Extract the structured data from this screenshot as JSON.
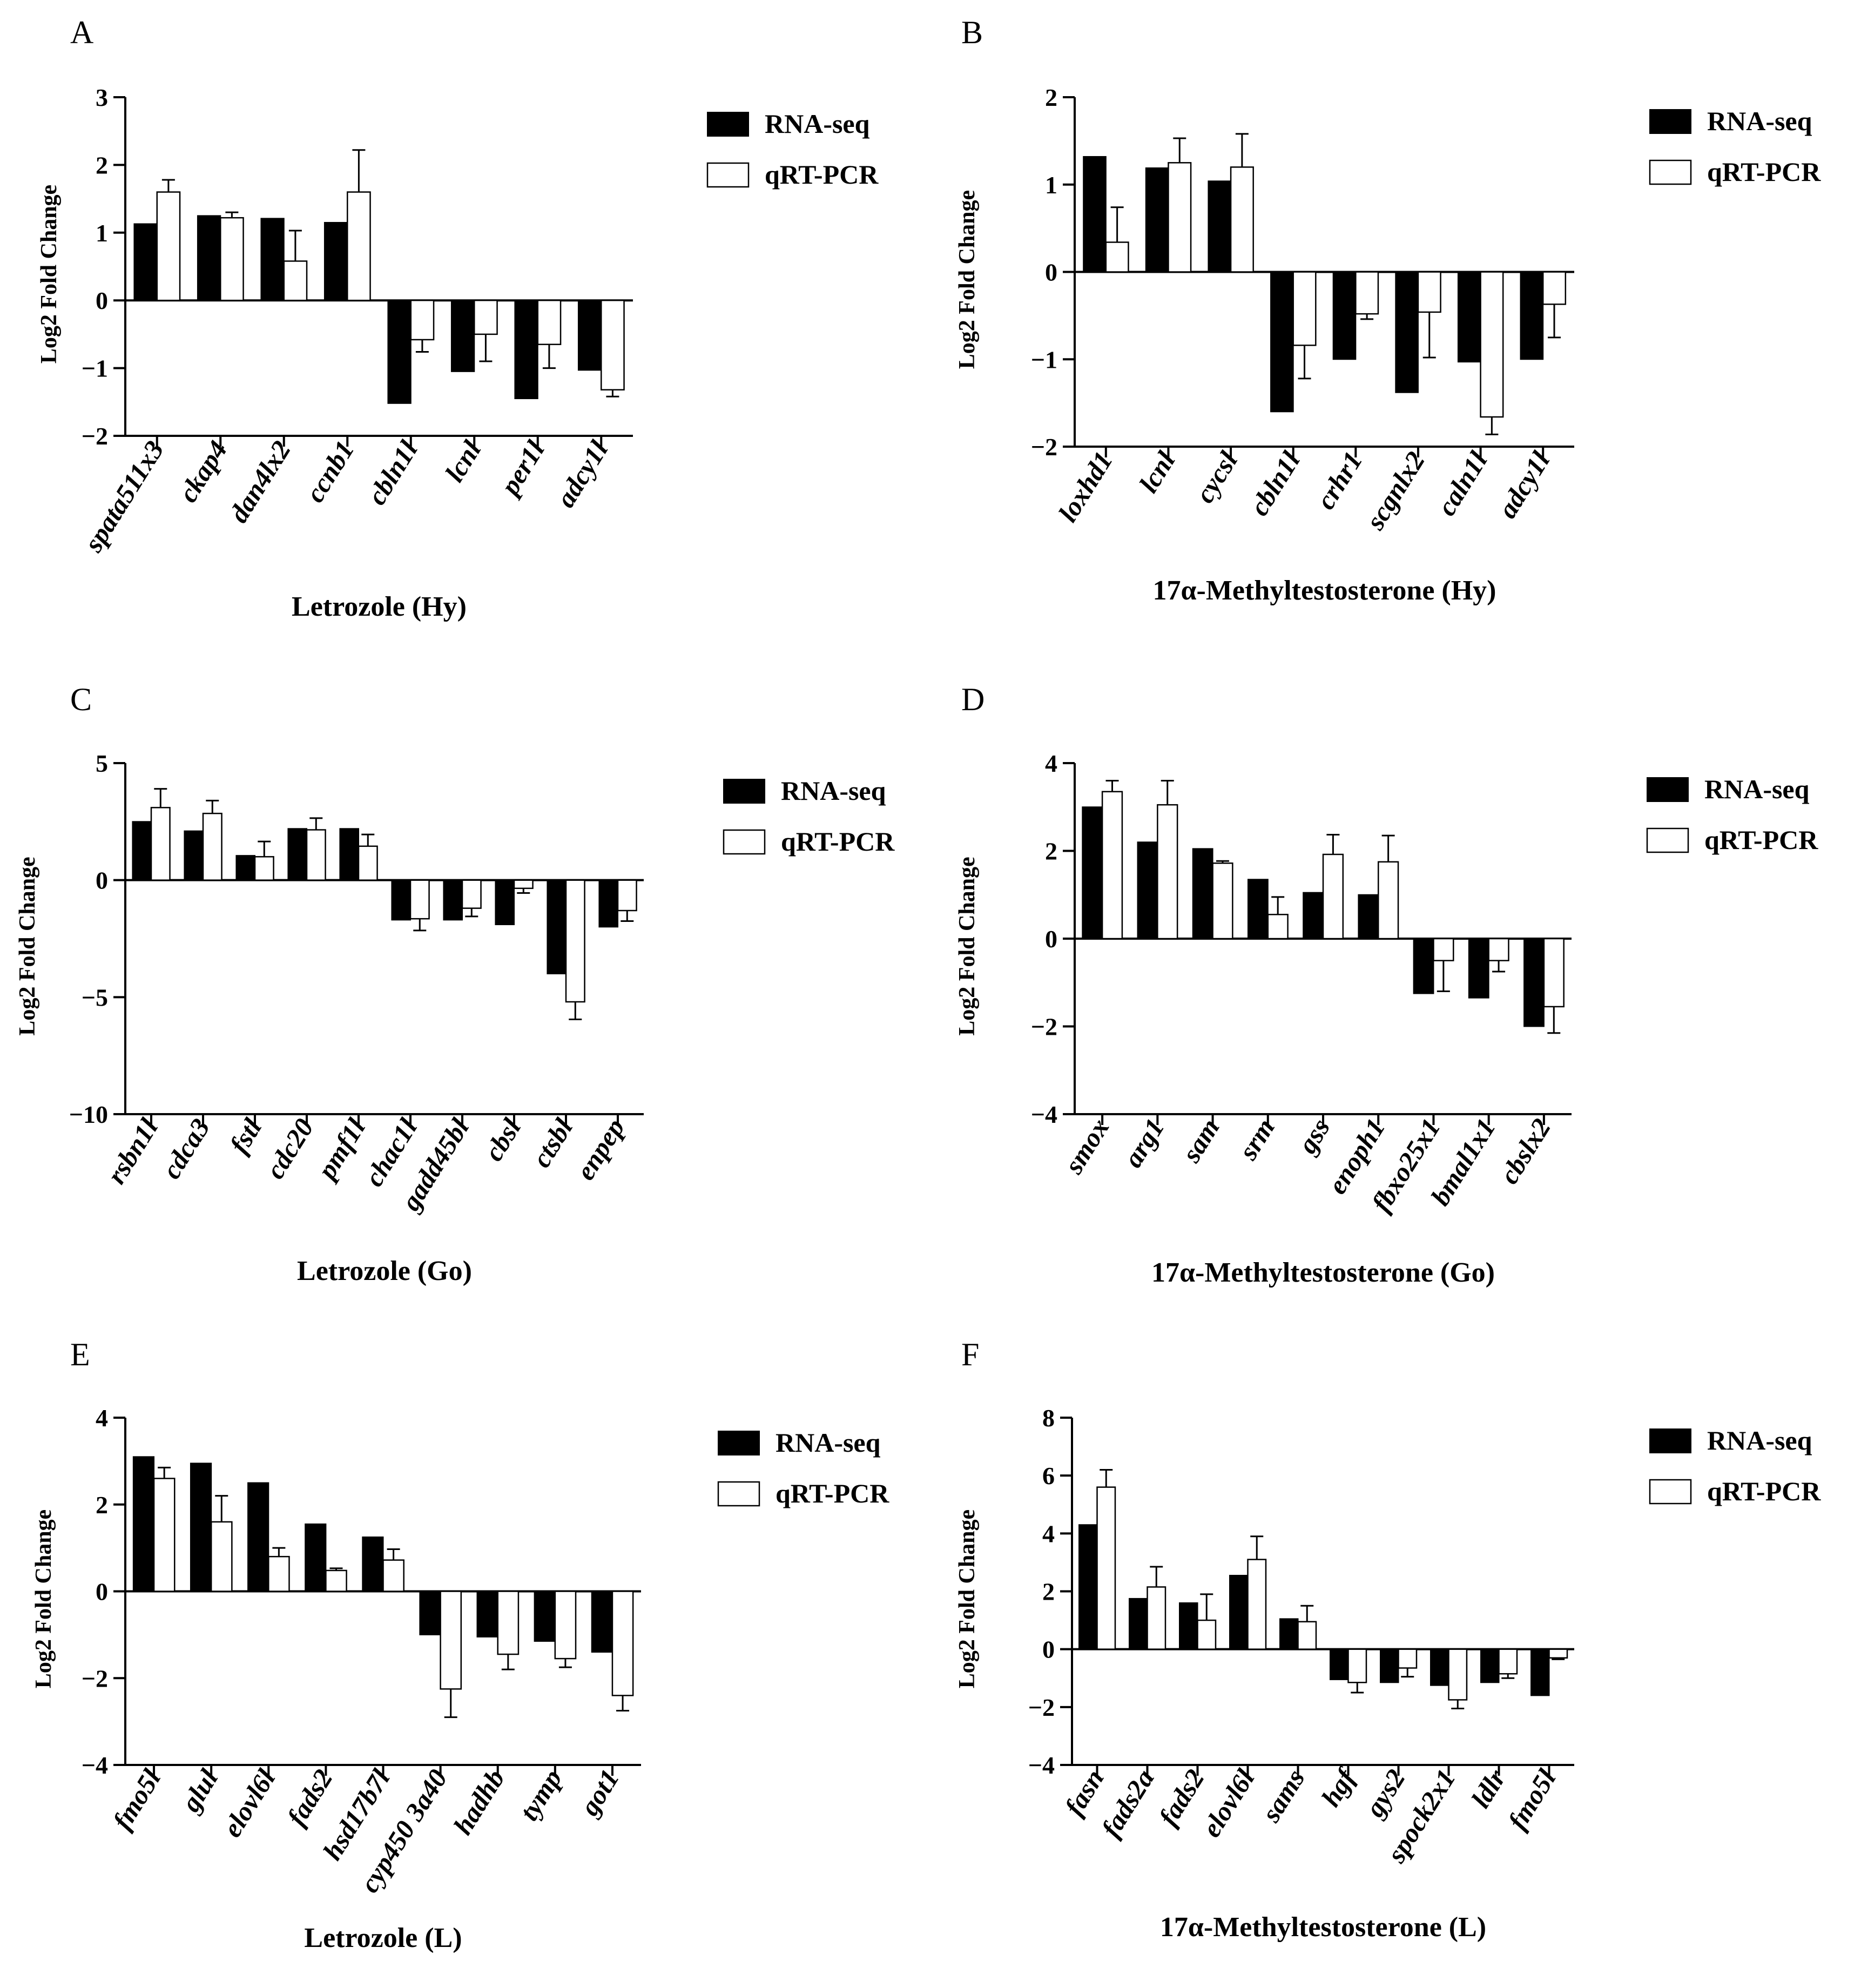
{
  "colors": {
    "rna_seq": "#000000",
    "qrt_pcr": "#ffffff",
    "axis": "#000000"
  },
  "chart_data": [
    {
      "panel": "A",
      "type": "bar",
      "title": "",
      "xlabel": "Letrozole (Hy)",
      "ylabel": "Log2 Fold Change",
      "ylim": [
        -2,
        3
      ],
      "yticks": [
        3,
        2,
        1,
        0,
        -1,
        -2
      ],
      "ytick_labels": [
        "3",
        "2",
        "1",
        "0",
        "−1",
        "−2"
      ],
      "legend": [
        "RNA-seq",
        "qRT-PCR"
      ],
      "legend_position": "right",
      "categories": [
        "spata511x3",
        "ckap4",
        "dan4lx2",
        "ccnb1",
        "cbln1l",
        "lcnl",
        "per1l",
        "adcy1l"
      ],
      "series": [
        {
          "name": "RNA-seq",
          "values": [
            1.13,
            1.25,
            1.21,
            1.15,
            -1.52,
            -1.05,
            -1.45,
            -1.03
          ]
        },
        {
          "name": "qRT-PCR",
          "values": [
            1.6,
            1.22,
            0.58,
            1.6,
            -0.58,
            -0.5,
            -0.65,
            -1.32
          ],
          "errors": [
            0.18,
            0.08,
            0.45,
            0.62,
            0.18,
            0.4,
            0.35,
            0.1
          ]
        }
      ]
    },
    {
      "panel": "B",
      "type": "bar",
      "title": "",
      "xlabel": "17α-Methyltestosterone (Hy)",
      "ylabel": "Log2 Fold Change",
      "ylim": [
        -2,
        2
      ],
      "yticks": [
        2,
        1,
        0,
        -1,
        -2
      ],
      "ytick_labels": [
        "2",
        "1",
        "0",
        "−1",
        "−2"
      ],
      "legend": [
        "RNA-seq",
        "qRT-PCR"
      ],
      "legend_position": "right",
      "categories": [
        "loxhd1",
        "lcnl",
        "cycsl",
        "cbln1l",
        "crhr1",
        "scgnlx2",
        "caln1l",
        "adcy1l"
      ],
      "series": [
        {
          "name": "RNA-seq",
          "values": [
            1.32,
            1.19,
            1.04,
            -1.6,
            -1.0,
            -1.38,
            -1.03,
            -1.0
          ]
        },
        {
          "name": "qRT-PCR",
          "values": [
            0.34,
            1.25,
            1.2,
            -0.84,
            -0.48,
            -0.46,
            -1.66,
            -0.37
          ],
          "errors": [
            0.4,
            0.28,
            0.38,
            0.38,
            0.06,
            0.52,
            0.2,
            0.38
          ]
        }
      ]
    },
    {
      "panel": "C",
      "type": "bar",
      "title": "",
      "xlabel": "Letrozole (Go)",
      "ylabel": "Log2 Fold Change",
      "ylim": [
        -10,
        5
      ],
      "yticks": [
        5,
        0,
        -5,
        -10
      ],
      "ytick_labels": [
        "5",
        "0",
        "−5",
        "−10"
      ],
      "legend": [
        "RNA-seq",
        "qRT-PCR"
      ],
      "legend_position": "right",
      "categories": [
        "rsbn1l",
        "cdca3",
        "fstl",
        "cdc20",
        "pmf1l",
        "chac1l",
        "gadd45bl",
        "cbsl",
        "ctsbl",
        "enpep"
      ],
      "series": [
        {
          "name": "RNA-seq",
          "values": [
            2.5,
            2.1,
            1.05,
            2.2,
            2.2,
            -1.7,
            -1.7,
            -1.9,
            -4.0,
            -2.0
          ]
        },
        {
          "name": "qRT-PCR",
          "values": [
            3.1,
            2.85,
            1.0,
            2.15,
            1.45,
            -1.65,
            -1.2,
            -0.35,
            -5.2,
            -1.3
          ],
          "errors": [
            0.8,
            0.55,
            0.65,
            0.5,
            0.5,
            0.5,
            0.35,
            0.2,
            0.75,
            0.45
          ]
        }
      ]
    },
    {
      "panel": "D",
      "type": "bar",
      "title": "",
      "xlabel": "17α-Methyltestosterone (Go)",
      "ylabel": "Log2 Fold Change",
      "ylim": [
        -4,
        4
      ],
      "yticks": [
        4,
        2,
        0,
        -2,
        -4
      ],
      "ytick_labels": [
        "4",
        "2",
        "0",
        "−2",
        "−4"
      ],
      "legend": [
        "RNA-seq",
        "qRT-PCR"
      ],
      "legend_position": "right",
      "categories": [
        "smox",
        "arg1",
        "sam",
        "srm",
        "gss",
        "enoph1",
        "fbxo25x1",
        "bmal1x1",
        "cbslx2"
      ],
      "series": [
        {
          "name": "RNA-seq",
          "values": [
            3.0,
            2.2,
            2.05,
            1.35,
            1.05,
            1.0,
            -1.25,
            -1.35,
            -2.0
          ]
        },
        {
          "name": "qRT-PCR",
          "values": [
            3.35,
            3.05,
            1.72,
            0.55,
            1.92,
            1.75,
            -0.5,
            -0.5,
            -1.55
          ],
          "errors": [
            0.25,
            0.55,
            0.05,
            0.4,
            0.45,
            0.6,
            0.7,
            0.25,
            0.6
          ]
        }
      ]
    },
    {
      "panel": "E",
      "type": "bar",
      "title": "",
      "xlabel": "Letrozole (L)",
      "ylabel": "Log2 Fold Change",
      "ylim": [
        -4,
        4
      ],
      "yticks": [
        4,
        2,
        0,
        -2,
        -4
      ],
      "ytick_labels": [
        "4",
        "2",
        "0",
        "−2",
        "−4"
      ],
      "legend": [
        "RNA-seq",
        "qRT-PCR"
      ],
      "legend_position": "right",
      "categories": [
        "fmo5l",
        "glul",
        "elovl6l",
        "fads2",
        "hsd17b7l",
        "cyp450 3a40",
        "hadhb",
        "tymp",
        "got1"
      ],
      "series": [
        {
          "name": "RNA-seq",
          "values": [
            3.1,
            2.95,
            2.5,
            1.55,
            1.25,
            -1.0,
            -1.05,
            -1.15,
            -1.4
          ]
        },
        {
          "name": "qRT-PCR",
          "values": [
            2.6,
            1.6,
            0.8,
            0.48,
            0.72,
            -2.25,
            -1.45,
            -1.55,
            -2.4
          ],
          "errors": [
            0.25,
            0.6,
            0.2,
            0.05,
            0.25,
            0.65,
            0.35,
            0.2,
            0.35
          ]
        }
      ]
    },
    {
      "panel": "F",
      "type": "bar",
      "title": "",
      "xlabel": "17α-Methyltestosterone (L)",
      "ylabel": "Log2 Fold Change",
      "ylim": [
        -4,
        8
      ],
      "yticks": [
        8,
        6,
        4,
        2,
        0,
        -2,
        -4
      ],
      "ytick_labels": [
        "8",
        "6",
        "4",
        "2",
        "0",
        "−2",
        "−4"
      ],
      "legend": [
        "RNA-seq",
        "qRT-PCR"
      ],
      "legend_position": "right",
      "categories": [
        "fasn",
        "fads2a",
        "fads2",
        "elovl6l",
        "sams",
        "hgf",
        "gys2",
        "spock2x1",
        "ldlr",
        "fmo5l"
      ],
      "series": [
        {
          "name": "RNA-seq",
          "values": [
            4.3,
            1.75,
            1.6,
            2.55,
            1.05,
            -1.05,
            -1.15,
            -1.25,
            -1.15,
            -1.6
          ]
        },
        {
          "name": "qRT-PCR",
          "values": [
            5.6,
            2.15,
            1.0,
            3.1,
            0.95,
            -1.15,
            -0.65,
            -1.75,
            -0.85,
            -0.3
          ],
          "errors": [
            0.6,
            0.7,
            0.9,
            0.8,
            0.55,
            0.35,
            0.3,
            0.3,
            0.15,
            0.05
          ]
        }
      ]
    }
  ]
}
